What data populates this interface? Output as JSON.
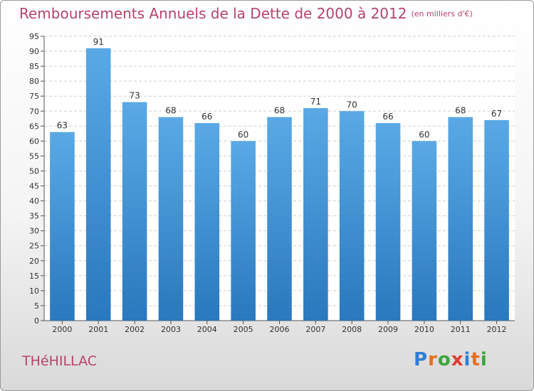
{
  "title": "Remboursements Annuels de la Dette de 2000 à 2012",
  "unit_label": "(en milliers d'€)",
  "town": "THéHILLAC",
  "logo": {
    "letters": [
      "P",
      "r",
      "o",
      "x",
      "i",
      "t",
      "i"
    ],
    "colors": [
      "#2f7fd6",
      "#e6701f",
      "#3aa63a",
      "#e23a2f",
      "#2f7fd6",
      "#e6701f",
      "#3aa63a"
    ]
  },
  "colors": {
    "bar_top": "#5aa9e6",
    "bar_bottom": "#2a78bd",
    "accent": "#b5436d"
  },
  "chart_data": {
    "type": "bar",
    "title": "Remboursements Annuels de la Dette de 2000 à 2012",
    "xlabel": "",
    "ylabel": "",
    "categories": [
      "2000",
      "2001",
      "2002",
      "2003",
      "2004",
      "2005",
      "2006",
      "2007",
      "2008",
      "2009",
      "2010",
      "2011",
      "2012"
    ],
    "values": [
      63,
      91,
      73,
      68,
      66,
      60,
      68,
      71,
      70,
      66,
      60,
      68,
      67
    ],
    "ylim": [
      0,
      95
    ],
    "ytick_step": 5,
    "grid": true,
    "data_labels": true
  }
}
